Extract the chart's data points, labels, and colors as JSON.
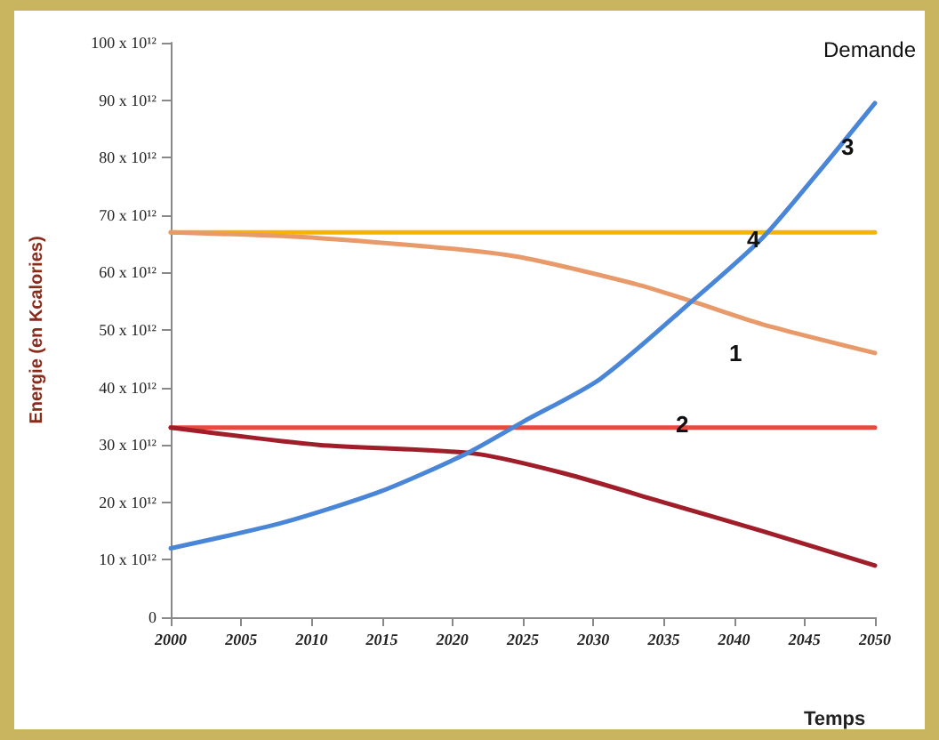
{
  "chart_data": {
    "type": "line",
    "ylabel": "Energie (en Kcalories)",
    "xlabel": "Temps",
    "xlim": [
      2000,
      2050
    ],
    "xticks": [
      2000,
      2005,
      2010,
      2015,
      2020,
      2025,
      2030,
      2035,
      2040,
      2045,
      2050
    ],
    "ylim": [
      0,
      100000000000000.0
    ],
    "yticks": [
      0,
      {
        "value": 10000000000000.0,
        "label": "10 x 10¹²"
      },
      {
        "value": 20000000000000.0,
        "label": "20 x 10¹²"
      },
      {
        "value": 30000000000000.0,
        "label": "30 x 10¹²"
      },
      {
        "value": 40000000000000.0,
        "label": "40 x 10¹²"
      },
      {
        "value": 50000000000000.0,
        "label": "50 x 10¹²"
      },
      {
        "value": 60000000000000.0,
        "label": "60 x 10¹²"
      },
      {
        "value": 70000000000000.0,
        "label": "70 x 10¹²"
      },
      {
        "value": 80000000000000.0,
        "label": "80 x 10¹²"
      },
      {
        "value": 90000000000000.0,
        "label": "90 x 10¹²"
      },
      {
        "value": 100000000000000.0,
        "label": "100 x 10¹²"
      }
    ],
    "grid": false,
    "marker": "none",
    "line_style": "solid",
    "series": [
      {
        "color": "#f5b400",
        "x": [
          2000,
          2050
        ],
        "values": [
          67000000000000.0,
          67000000000000.0
        ]
      },
      {
        "color": "#e89a6a",
        "x": [
          2000,
          2010.5,
          2024,
          2033,
          2037,
          2042,
          2050
        ],
        "values": [
          67000000000000.0,
          66000000000000.0,
          63000000000000.0,
          58000000000000.0,
          55000000000000.0,
          51000000000000.0,
          46000000000000.0
        ]
      },
      {
        "color": "#e84a3a",
        "x": [
          2000,
          2050
        ],
        "values": [
          33000000000000.0,
          33000000000000.0
        ]
      },
      {
        "color": "#a01e2a",
        "x": [
          2000,
          2010.5,
          2021.5,
          2028,
          2035,
          2042,
          2050
        ],
        "values": [
          33000000000000.0,
          30000000000000.0,
          28500000000000.0,
          25000000000000.0,
          20000000000000.0,
          15000000000000.0,
          9000000000000.0
        ]
      },
      {
        "color": "#4a86d8",
        "x": [
          2000,
          2008,
          2015,
          2021,
          2025,
          2030.5,
          2037,
          2042,
          2046,
          2050
        ],
        "values": [
          12000000000000.0,
          16500000000000.0,
          22000000000000.0,
          28500000000000.0,
          34000000000000.0,
          41500000000000.0,
          55000000000000.0,
          66000000000000.0,
          77500000000000.0,
          89500000000000.0
        ]
      }
    ],
    "annotations": [
      "Demande",
      "1",
      "2",
      "3",
      "4"
    ]
  }
}
